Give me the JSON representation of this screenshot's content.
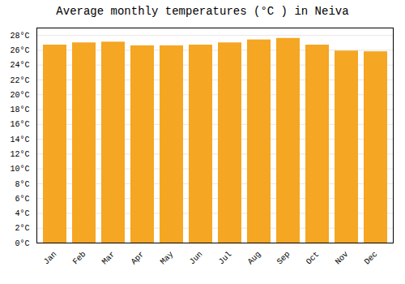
{
  "chart_data": {
    "type": "bar",
    "title": "Average monthly temperatures (°C ) in Neiva",
    "categories": [
      "Jan",
      "Feb",
      "Mar",
      "Apr",
      "May",
      "Jun",
      "Jul",
      "Aug",
      "Sep",
      "Oct",
      "Nov",
      "Dec"
    ],
    "values": [
      26.7,
      27.0,
      27.1,
      26.6,
      26.6,
      26.7,
      27.0,
      27.4,
      27.6,
      26.7,
      25.9,
      25.8
    ],
    "color": "#F5A623",
    "ylim": [
      0,
      29
    ],
    "yticks": [
      {
        "value": 0,
        "label": "0°C"
      },
      {
        "value": 2,
        "label": "2°C"
      },
      {
        "value": 4,
        "label": "4°C"
      },
      {
        "value": 6,
        "label": "6°C"
      },
      {
        "value": 8,
        "label": "8°C"
      },
      {
        "value": 10,
        "label": "10°C"
      },
      {
        "value": 12,
        "label": "12°C"
      },
      {
        "value": 14,
        "label": "14°C"
      },
      {
        "value": 16,
        "label": "16°C"
      },
      {
        "value": 18,
        "label": "18°C"
      },
      {
        "value": 20,
        "label": "20°C"
      },
      {
        "value": 22,
        "label": "22°C"
      },
      {
        "value": 24,
        "label": "24°C"
      },
      {
        "value": 26,
        "label": "26°C"
      },
      {
        "value": 28,
        "label": "28°C"
      }
    ],
    "grid": true
  }
}
